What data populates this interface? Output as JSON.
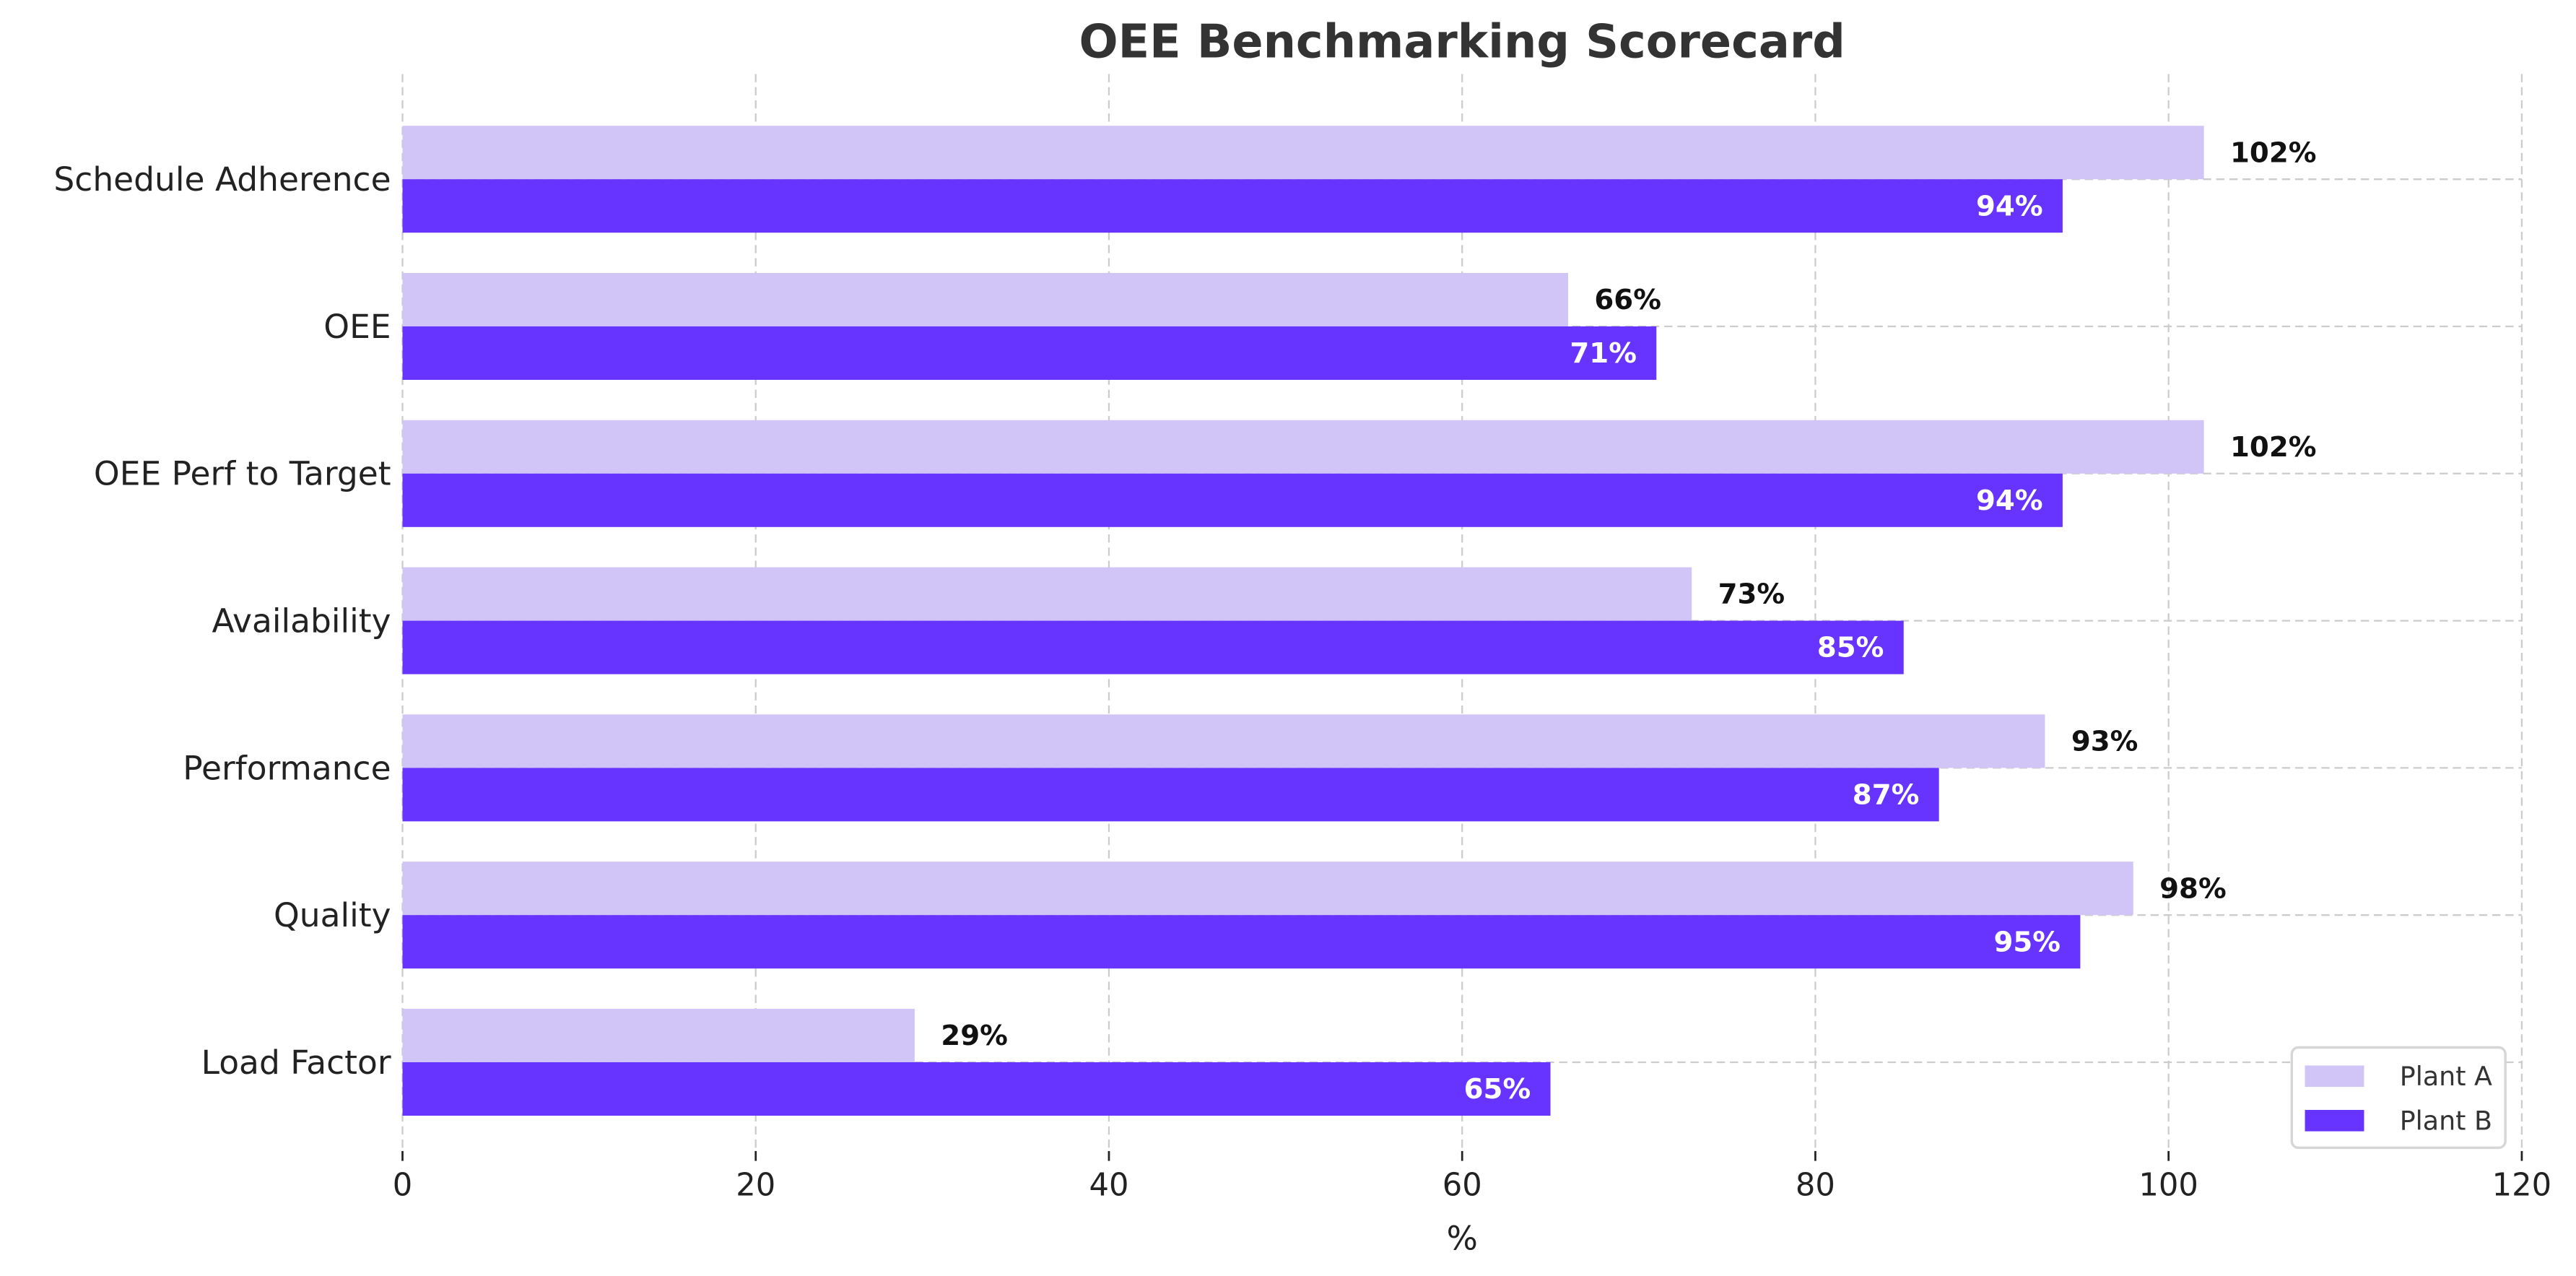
{
  "chart_data": {
    "type": "bar",
    "orientation": "horizontal",
    "title": "OEE Benchmarking Scorecard",
    "xlabel": "%",
    "ylabel": "",
    "xlim": [
      0,
      120
    ],
    "xticks": [
      "0",
      "20",
      "40",
      "60",
      "80",
      "100",
      "120"
    ],
    "grid": true,
    "legend_position": "bottom-right",
    "categories": [
      "Schedule Adherence",
      "OEE",
      "OEE Perf to Target",
      "Availability",
      "Performance",
      "Quality",
      "Load Factor"
    ],
    "series": [
      {
        "name": "Plant A",
        "color": "#d1c4f7",
        "values": [
          102,
          66,
          102,
          73,
          93,
          98,
          29
        ],
        "labels": [
          "102%",
          "66%",
          "102%",
          "73%",
          "93%",
          "98%",
          "29%"
        ]
      },
      {
        "name": "Plant B",
        "color": "#6633ff",
        "values": [
          94,
          71,
          94,
          85,
          87,
          95,
          65
        ],
        "labels": [
          "94%",
          "71%",
          "94%",
          "85%",
          "87%",
          "95%",
          "65%"
        ]
      }
    ]
  }
}
